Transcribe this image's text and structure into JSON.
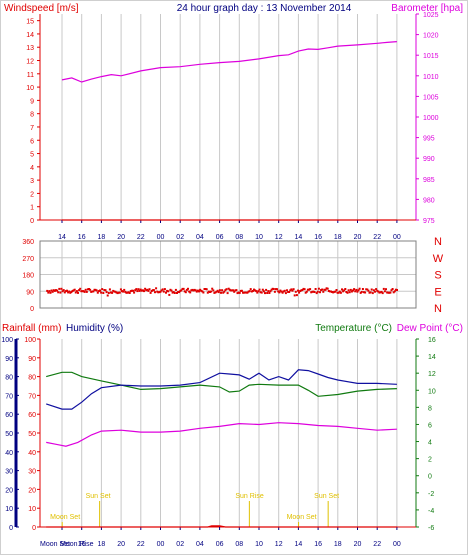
{
  "header": {
    "left_title": "Windspeed [m/s]",
    "center_title": "24 hour graph day : 13 November 2014",
    "right_title": "Barometer [hpa]"
  },
  "bottom_header": {
    "rainfall_label": "Rainfall (mm)",
    "humidity_label": "Humidity (%)",
    "temperature_label": "Temperature (°C)",
    "dewpoint_label": "Dew Point (°C)"
  },
  "x_ticks": [
    "14",
    "16",
    "18",
    "20",
    "22",
    "00",
    "02",
    "04",
    "06",
    "08",
    "10",
    "12",
    "14",
    "16",
    "18",
    "20",
    "22",
    "00"
  ],
  "bottom_axis_prefix": [
    "Moon Set",
    "Moon Rise"
  ],
  "annotations": [
    {
      "name": "sun-set-label-1",
      "text": "Sun Set",
      "x_index": 1.2,
      "row": "sun"
    },
    {
      "name": "sun-rise-label",
      "text": "Sun Rise",
      "x_index": 8.8,
      "row": "sun"
    },
    {
      "name": "sun-set-label-2",
      "text": "Sun Set",
      "x_index": 12.8,
      "row": "sun"
    },
    {
      "name": "moon-set-label-1",
      "text": "Moon Set",
      "x_index": -0.6,
      "row": "moon"
    },
    {
      "name": "moon-set-label-2",
      "text": "Moon Set",
      "x_index": 11.4,
      "row": "moon"
    }
  ],
  "colors": {
    "red": "#e00000",
    "magenta": "#dd00dd",
    "blue": "#1010a0",
    "green": "#107a10",
    "navy": "#000080",
    "grid": "#c8c8c8",
    "yellow": "#e0c000"
  },
  "chart_data": [
    {
      "type": "line",
      "name": "wind-barometer",
      "title": "24 hour graph day : 13 November 2014",
      "ylabel_left": "Windspeed [m/s]",
      "ylabel_right": "Barometer [hpa]",
      "x_ticks": [
        "14",
        "16",
        "18",
        "20",
        "22",
        "00",
        "02",
        "04",
        "06",
        "08",
        "10",
        "12",
        "14",
        "16",
        "18",
        "20",
        "22",
        "00"
      ],
      "y_left_ticks": [
        "0",
        "1",
        "2",
        "3",
        "4",
        "5",
        "6",
        "7",
        "8",
        "9",
        "10",
        "11",
        "12",
        "13",
        "14",
        "15"
      ],
      "y_right_ticks": [
        "975",
        "980",
        "985",
        "990",
        "995",
        "1000",
        "1005",
        "1010",
        "1015",
        "1020",
        "1025"
      ],
      "ylim_left": [
        0,
        15.5
      ],
      "ylim_right": [
        975,
        1025
      ],
      "series": [
        {
          "name": "Barometer",
          "axis": "right",
          "color": "#dd00dd",
          "x": [
            0,
            0.5,
            1,
            1.5,
            2,
            2.5,
            3,
            4,
            5,
            6,
            7,
            8,
            9,
            10,
            11,
            11.5,
            12,
            12.5,
            13,
            13.5,
            14,
            15,
            16,
            16.5,
            17
          ],
          "y": [
            1009,
            1009.5,
            1008.5,
            1009.2,
            1009.8,
            1010.3,
            1010,
            1011.2,
            1012,
            1012.2,
            1012.8,
            1013.2,
            1013.5,
            1014.1,
            1014.9,
            1015.1,
            1016,
            1016.5,
            1016.4,
            1016.8,
            1017.2,
            1017.5,
            1017.9,
            1018.1,
            1018.3
          ]
        },
        {
          "name": "Windspeed",
          "axis": "left",
          "color": "#e00000",
          "x": [
            0,
            17
          ],
          "y": [
            0,
            0
          ]
        }
      ]
    },
    {
      "type": "scatter",
      "name": "wind-direction",
      "y_ticks": [
        "360",
        "270",
        "180",
        "90",
        "0"
      ],
      "y_labels_right": [
        "N",
        "W",
        "S",
        "E",
        "N"
      ],
      "ylim": [
        0,
        360
      ],
      "series": [
        {
          "name": "Wind Direction",
          "color": "#e00000",
          "x_range": [
            -0.8,
            17
          ],
          "y_mean": 92,
          "y_spread": 12
        }
      ]
    },
    {
      "type": "line",
      "name": "humidity-temperature",
      "y_left_rain_ticks": [
        "0",
        "10",
        "20",
        "30",
        "40",
        "50",
        "60",
        "70",
        "80",
        "90",
        "100"
      ],
      "y_left_hum_ticks": [
        "0",
        "10",
        "20",
        "30",
        "40",
        "50",
        "60",
        "70",
        "80",
        "90",
        "100"
      ],
      "y_right_ticks": [
        "-6",
        "-4",
        "-2",
        "0",
        "2",
        "4",
        "6",
        "8",
        "10",
        "12",
        "14",
        "16"
      ],
      "ylim_left": [
        0,
        100
      ],
      "ylim_right": [
        -6,
        16
      ],
      "series": [
        {
          "name": "Humidity",
          "axis": "left",
          "color": "#dd00dd",
          "x": [
            -0.8,
            -0.3,
            0.2,
            0.8,
            1.5,
            2,
            3,
            4,
            5,
            6,
            7,
            8,
            9,
            10,
            11,
            12,
            13,
            14,
            15,
            16,
            17
          ],
          "y": [
            45,
            44,
            43,
            45,
            49,
            51,
            51.5,
            50.5,
            50.5,
            51,
            52.5,
            53.5,
            55,
            54.5,
            55.5,
            55,
            54,
            53.5,
            52.5,
            51.5,
            52
          ]
        },
        {
          "name": "Temperature",
          "axis": "right",
          "color": "#107a10",
          "x": [
            -0.8,
            0,
            0.5,
            1,
            2,
            3,
            4,
            5,
            6,
            7,
            8,
            8.5,
            9,
            9.5,
            10,
            11,
            12,
            12.5,
            13,
            14,
            15,
            16,
            17
          ],
          "y": [
            11.6,
            12.1,
            12.1,
            11.6,
            11.1,
            10.6,
            10.1,
            10.2,
            10.4,
            10.6,
            10.4,
            9.8,
            9.9,
            10.6,
            10.7,
            10.6,
            10.6,
            10.0,
            9.3,
            9.5,
            9.9,
            10.1,
            10.2
          ]
        },
        {
          "name": "Dew Point",
          "axis": "right",
          "color": "#1010a0",
          "x": [
            -0.8,
            0,
            0.5,
            1,
            1.5,
            2,
            3,
            4,
            5,
            6,
            7,
            8,
            8.5,
            9,
            9.5,
            10,
            10.5,
            11,
            11.5,
            12,
            12.5,
            13,
            13.5,
            14,
            15,
            16,
            17
          ],
          "y": [
            8.4,
            7.8,
            7.8,
            8.6,
            9.6,
            10.3,
            10.6,
            10.5,
            10.5,
            10.6,
            10.9,
            12.0,
            11.9,
            11.8,
            11.3,
            12.0,
            11.2,
            11.6,
            11.2,
            12.4,
            12.3,
            11.9,
            11.5,
            11.2,
            10.8,
            10.8,
            10.7
          ]
        },
        {
          "name": "Rainfall",
          "axis": "left",
          "color": "#e00000",
          "x": [
            -0.8,
            7.4,
            7.6,
            8,
            8.3,
            17
          ],
          "y": [
            0,
            0,
            0.6,
            0.6,
            0,
            0
          ]
        }
      ]
    }
  ]
}
